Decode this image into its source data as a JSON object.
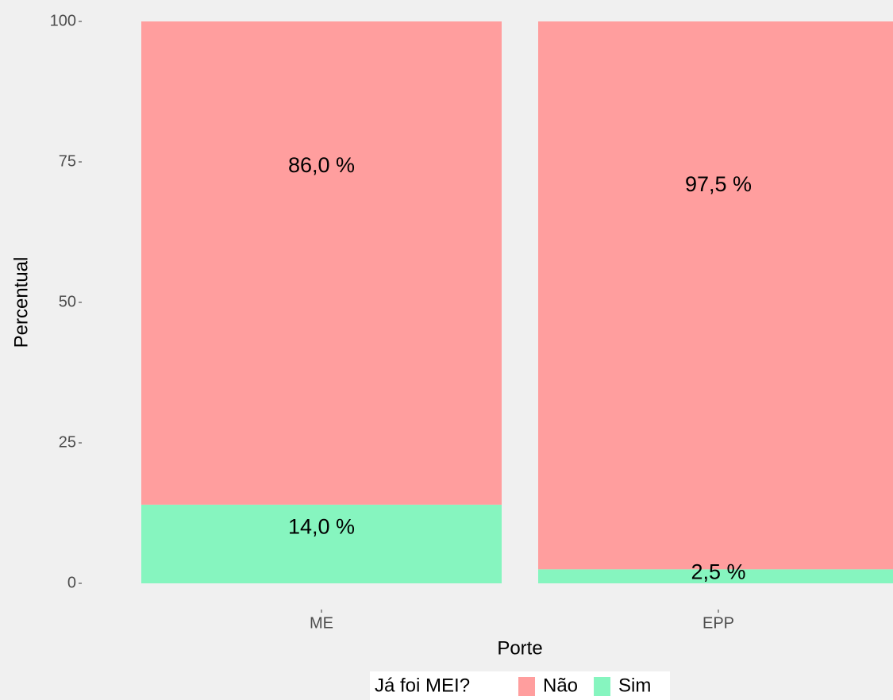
{
  "chart_data": {
    "type": "stacked_bar",
    "x_label": "Porte",
    "y_label": "Percentual",
    "legend_title": "Já foi MEI?",
    "categories": [
      "ME",
      "EPP"
    ],
    "series": [
      {
        "name": "Sim",
        "color": "#86f5bf",
        "values": [
          14.0,
          2.5
        ],
        "value_labels": [
          "14,0 %",
          "2,5 %"
        ]
      },
      {
        "name": "Não",
        "color": "#ff9e9e",
        "values": [
          86.0,
          97.5
        ],
        "value_labels": [
          "86,0 %",
          "97,5 %"
        ]
      }
    ],
    "ylim": [
      0,
      100
    ],
    "yticks": [
      0,
      25,
      50,
      75,
      100
    ],
    "grid": false,
    "legend": "bottom"
  }
}
